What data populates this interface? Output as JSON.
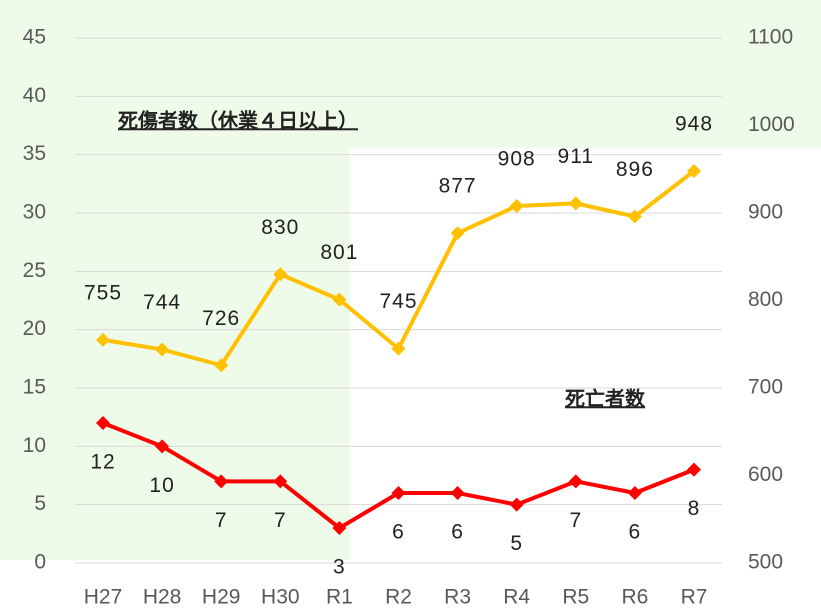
{
  "chart_data": {
    "type": "line",
    "categories": [
      "H27",
      "H28",
      "H29",
      "H30",
      "R1",
      "R2",
      "R3",
      "R4",
      "R5",
      "R6",
      "R7"
    ],
    "series": [
      {
        "name": "死亡者数",
        "color": "#ff0000",
        "values": [
          12,
          10,
          7,
          7,
          3,
          6,
          6,
          5,
          7,
          6,
          8
        ]
      },
      {
        "name": "死傷者数（休業４日以上）",
        "color": "#ffc000",
        "axis": "y2",
        "values": [
          755,
          744,
          726,
          830,
          801,
          745,
          877,
          908,
          911,
          896,
          948
        ]
      }
    ],
    "ylim": [
      0,
      45
    ],
    "yticks": [
      0,
      5,
      10,
      15,
      20,
      25,
      30,
      35,
      40,
      45
    ],
    "y2lim": [
      500,
      1100
    ],
    "y2ticks": [
      500,
      600,
      700,
      800,
      900,
      1000,
      1100
    ],
    "grid": true
  }
}
